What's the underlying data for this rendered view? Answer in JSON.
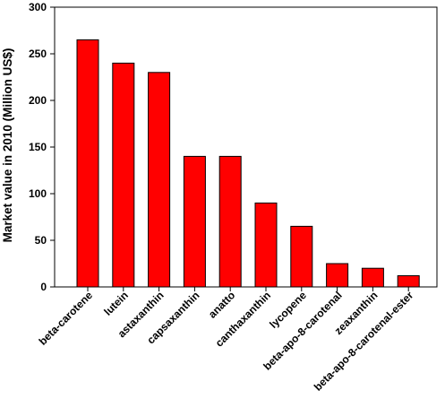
{
  "chart_data": {
    "type": "bar",
    "title": "",
    "xlabel": "",
    "ylabel": "Market value in 2010 (Million US$)",
    "ylim": [
      0,
      300
    ],
    "yticks": [
      0,
      50,
      100,
      150,
      200,
      250,
      300
    ],
    "grid": false,
    "bar_color": "#ff0000",
    "categories": [
      "beta-carotene",
      "lutein",
      "astaxanthin",
      "capsaxanthin",
      "anatto",
      "canthaxanthin",
      "lycopene",
      "beta-apo-8-carotenal",
      "zeaxanthin",
      "beta-apo-8-carotenal-ester"
    ],
    "values": [
      265,
      240,
      230,
      140,
      140,
      90,
      65,
      25,
      20,
      12
    ]
  }
}
